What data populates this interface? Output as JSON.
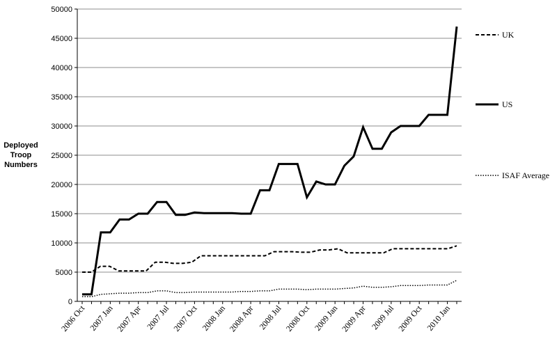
{
  "chart_data": {
    "type": "line",
    "title": "",
    "xlabel": "",
    "ylabel": [
      "Deployed",
      "Troop",
      "Numbers"
    ],
    "ylim": [
      0,
      50000
    ],
    "yticks": [
      0,
      5000,
      10000,
      15000,
      20000,
      25000,
      30000,
      35000,
      40000,
      45000,
      50000
    ],
    "grid": "horizontal",
    "legend_position": "right",
    "x_tick_labels": [
      "2006 Oct",
      "2007 Jan",
      "2007 Apr",
      "2007 Jul",
      "2007 Oct",
      "2008 Jan",
      "2008 Apr",
      "2008 Jul",
      "2008 Oct",
      "2009 Jan",
      "2009 Apr",
      "2009 Jul",
      "2009 Oct",
      "2010 Jan"
    ],
    "series": [
      {
        "name": "UK",
        "style": "dashed",
        "color": "#000000",
        "values": [
          5000,
          5000,
          6000,
          6000,
          5200,
          5200,
          5200,
          5200,
          6700,
          6700,
          6500,
          6500,
          6700,
          7800,
          7800,
          7800,
          7800,
          7800,
          7800,
          7800,
          7800,
          8500,
          8500,
          8500,
          8400,
          8400,
          8800,
          8800,
          9000,
          8300,
          8300,
          8300,
          8300,
          8300,
          9000,
          9000,
          9000,
          9000,
          9000,
          9000,
          9000,
          9500
        ]
      },
      {
        "name": "US",
        "style": "solid",
        "color": "#000000",
        "values": [
          1200,
          1200,
          11800,
          11800,
          14000,
          14000,
          15000,
          15000,
          17000,
          17000,
          14800,
          14800,
          15200,
          15100,
          15100,
          15100,
          15100,
          15000,
          15000,
          19000,
          19000,
          23500,
          23500,
          23500,
          17800,
          20500,
          20000,
          20000,
          23200,
          24800,
          29800,
          26100,
          26100,
          28900,
          30000,
          30000,
          30000,
          31900,
          31900,
          31900,
          47000
        ]
      },
      {
        "name": "ISAF Average",
        "style": "dotted",
        "color": "#000000",
        "values": [
          800,
          800,
          1200,
          1300,
          1400,
          1400,
          1500,
          1500,
          1800,
          1800,
          1500,
          1500,
          1600,
          1600,
          1600,
          1600,
          1600,
          1700,
          1700,
          1800,
          1800,
          2100,
          2100,
          2100,
          2000,
          2100,
          2100,
          2100,
          2200,
          2300,
          2600,
          2400,
          2400,
          2500,
          2700,
          2700,
          2700,
          2800,
          2800,
          2800,
          3600
        ]
      }
    ]
  }
}
